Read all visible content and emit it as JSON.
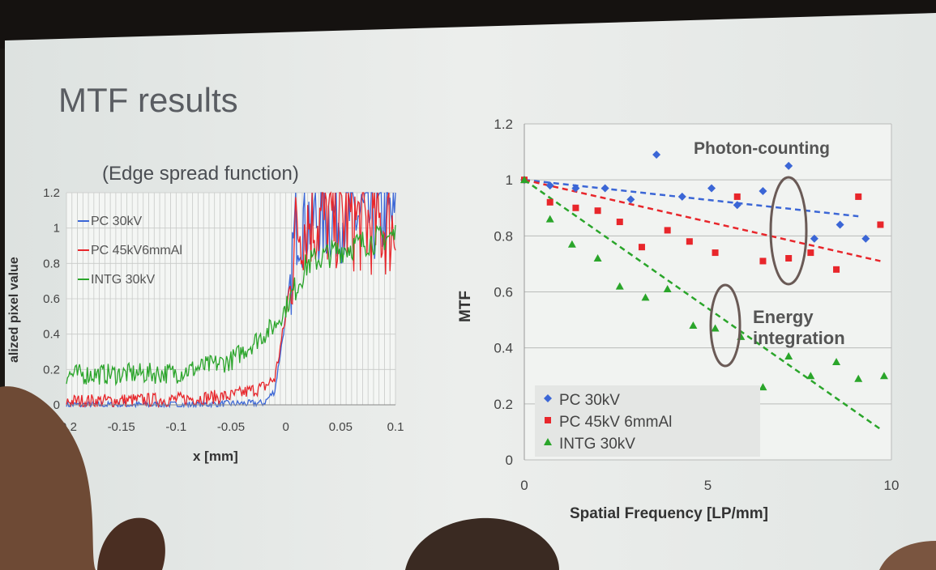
{
  "slide": {
    "title": "MTF results",
    "colors": {
      "background": "#e9ece9",
      "pc30": "#3b66d6",
      "pc45": "#e8262b",
      "intg": "#2aa52a"
    }
  },
  "chart_data": [
    {
      "type": "line",
      "title": "(Edge spread function)",
      "xlabel": "x [mm]",
      "ylabel": "alized pixel value",
      "xlim": [
        -0.2,
        0.1
      ],
      "ylim": [
        0,
        1.2
      ],
      "x_ticks": [
        "-0.2",
        "-0.15",
        "-0.1",
        "-0.05",
        "0",
        "0.05",
        "0.1"
      ],
      "y_ticks": [
        "0",
        "0.2",
        "0.4",
        "0.6",
        "0.8",
        "1",
        "1.2"
      ],
      "grid": true,
      "legend_position": "top-left",
      "series": [
        {
          "name": "PC 30kV",
          "color": "#3b66d6",
          "x": [
            -0.2,
            -0.1,
            -0.02,
            -0.01,
            0,
            0.01,
            0.02,
            0.05,
            0.1
          ],
          "y": [
            0.0,
            0.0,
            0.01,
            0.08,
            0.5,
            1.05,
            1.05,
            1.08,
            1.05
          ]
        },
        {
          "name": "PC 45kV6mmAl",
          "color": "#e8262b",
          "x": [
            -0.2,
            -0.1,
            -0.05,
            -0.02,
            -0.01,
            0,
            0.01,
            0.02,
            0.05,
            0.1
          ],
          "y": [
            0.02,
            0.03,
            0.05,
            0.1,
            0.15,
            0.5,
            1.0,
            1.05,
            1.05,
            1.0
          ]
        },
        {
          "name": "INTG 30kV",
          "color": "#2aa52a",
          "x": [
            -0.2,
            -0.1,
            -0.05,
            -0.03,
            -0.01,
            0,
            0.02,
            0.05,
            0.08,
            0.1
          ],
          "y": [
            0.17,
            0.18,
            0.25,
            0.35,
            0.45,
            0.55,
            0.8,
            0.88,
            0.93,
            0.96
          ]
        }
      ]
    },
    {
      "type": "scatter",
      "xlabel": "Spatial Frequency [LP/mm]",
      "ylabel": "MTF",
      "xlim": [
        0,
        10
      ],
      "ylim": [
        0,
        1.2
      ],
      "x_ticks": [
        "0",
        "5",
        "10"
      ],
      "y_ticks": [
        "0",
        "0.2",
        "0.4",
        "0.6",
        "0.8",
        "1",
        "1.2"
      ],
      "grid": true,
      "legend_position": "bottom-left",
      "annotations": [
        "Photon-counting",
        "Energy integration"
      ],
      "series": [
        {
          "name": "PC 30kV",
          "marker": "diamond",
          "color": "#3b66d6",
          "x": [
            0,
            0.7,
            1.4,
            2.2,
            2.9,
            3.6,
            4.3,
            5.1,
            5.8,
            6.5,
            7.2,
            7.9,
            8.6,
            9.3
          ],
          "y": [
            1.0,
            0.98,
            0.97,
            0.97,
            0.93,
            1.09,
            0.94,
            0.97,
            0.91,
            0.96,
            1.05,
            0.79,
            0.84,
            0.79
          ],
          "trend": [
            [
              0,
              1.0
            ],
            [
              9.1,
              0.87
            ]
          ]
        },
        {
          "name": "PC 45kV 6mmAl",
          "marker": "square",
          "color": "#e8262b",
          "x": [
            0,
            0.7,
            1.4,
            2.0,
            2.6,
            3.2,
            3.9,
            4.5,
            5.2,
            5.8,
            6.5,
            7.2,
            7.8,
            8.5,
            9.1,
            9.7
          ],
          "y": [
            1.0,
            0.92,
            0.9,
            0.89,
            0.85,
            0.76,
            0.82,
            0.78,
            0.74,
            0.94,
            0.71,
            0.72,
            0.74,
            0.68,
            0.94,
            0.84
          ],
          "trend": [
            [
              0,
              1.0
            ],
            [
              9.7,
              0.71
            ]
          ]
        },
        {
          "name": "INTG 30kV",
          "marker": "triangle",
          "color": "#2aa52a",
          "x": [
            0,
            0.7,
            1.3,
            2.0,
            2.6,
            3.3,
            3.9,
            4.6,
            5.2,
            5.9,
            6.5,
            7.2,
            7.8,
            8.5,
            9.1,
            9.8
          ],
          "y": [
            1.0,
            0.86,
            0.77,
            0.72,
            0.62,
            0.58,
            0.61,
            0.48,
            0.47,
            0.44,
            0.26,
            0.37,
            0.3,
            0.35,
            0.29,
            0.3
          ],
          "trend": [
            [
              0,
              1.0
            ],
            [
              9.7,
              0.11
            ]
          ]
        }
      ]
    }
  ]
}
